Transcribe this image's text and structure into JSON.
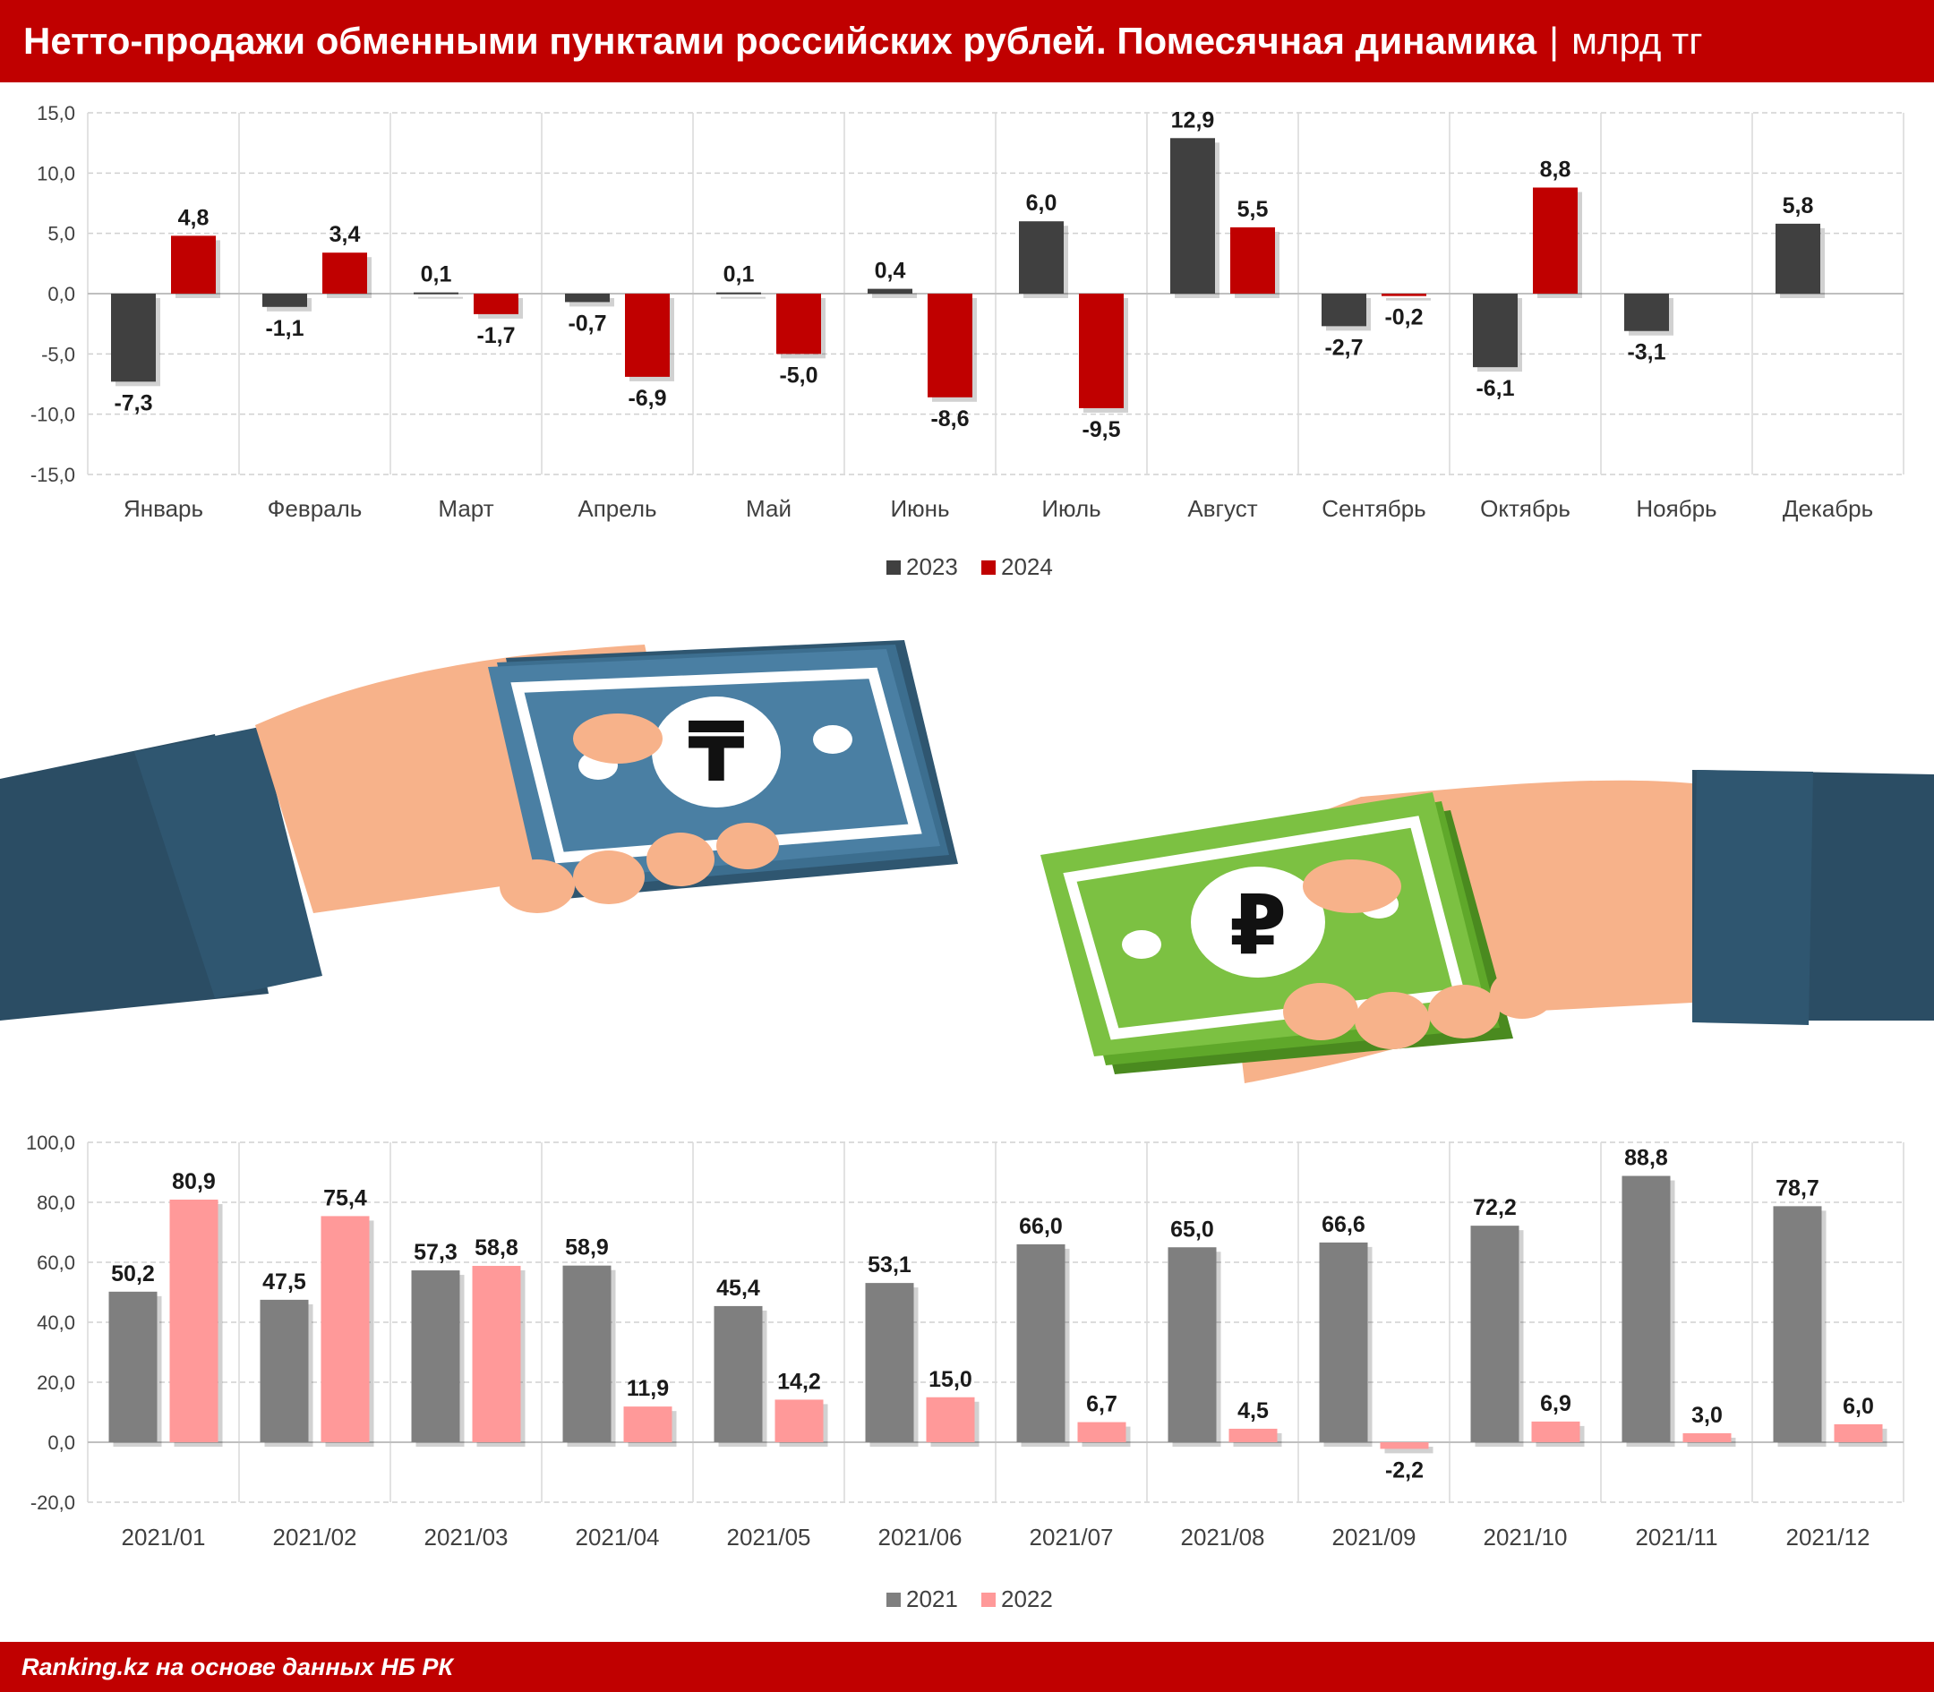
{
  "header": {
    "title": "Нетто-продажи обменными пунктами российских рублей. Помесячная динамика",
    "separator": "|",
    "unit": "млрд тг"
  },
  "footer": {
    "source": "Ranking.kz на основе данных НБ РК"
  },
  "illustration": {
    "tenge_symbol": "₸",
    "ruble_symbol": "₽"
  },
  "colors": {
    "s2023": "#404040",
    "s2024": "#c00000",
    "s2021": "#7f7f7f",
    "s2022": "#ff9999",
    "header_bg": "#c00000"
  },
  "chart_data": [
    {
      "type": "bar",
      "categories": [
        "Январь",
        "Февраль",
        "Март",
        "Апрель",
        "Май",
        "Июнь",
        "Июль",
        "Август",
        "Сентябрь",
        "Октябрь",
        "Ноябрь",
        "Декабрь"
      ],
      "series": [
        {
          "name": "2023",
          "color": "#404040",
          "values": [
            -7.3,
            -1.1,
            0.1,
            -0.7,
            0.1,
            0.4,
            6.0,
            12.9,
            -2.7,
            -6.1,
            -3.1,
            5.8
          ]
        },
        {
          "name": "2024",
          "color": "#c00000",
          "values": [
            4.8,
            3.4,
            -1.7,
            -6.9,
            -5.0,
            -8.6,
            -9.5,
            5.5,
            -0.2,
            8.8,
            null,
            null
          ]
        }
      ],
      "ylim": [
        -15,
        15
      ],
      "yticks": [
        "15,0",
        "10,0",
        "5,0",
        "0,0",
        "-5,0",
        "-10,0",
        "-15,0"
      ],
      "data_labels": [
        [
          "-7,3",
          "-1,1",
          "0,1",
          "-0,7",
          "0,1",
          "0,4",
          "6,0",
          "12,9",
          "-2,7",
          "-6,1",
          "-3,1",
          "5,8"
        ],
        [
          "4,8",
          "3,4",
          "-1,7",
          "-6,9",
          "-5,0",
          "-8,6",
          "-9,5",
          "5,5",
          "-0,2",
          "8,8",
          "",
          ""
        ]
      ],
      "legend": "bottom",
      "grid": true
    },
    {
      "type": "bar",
      "categories": [
        "2021/01",
        "2021/02",
        "2021/03",
        "2021/04",
        "2021/05",
        "2021/06",
        "2021/07",
        "2021/08",
        "2021/09",
        "2021/10",
        "2021/11",
        "2021/12"
      ],
      "series": [
        {
          "name": "2021",
          "color": "#7f7f7f",
          "values": [
            50.2,
            47.5,
            57.3,
            58.9,
            45.4,
            53.1,
            66.0,
            65.0,
            66.6,
            72.2,
            88.8,
            78.7
          ]
        },
        {
          "name": "2022",
          "color": "#ff9999",
          "values": [
            80.9,
            75.4,
            58.8,
            11.9,
            14.2,
            15.0,
            6.7,
            4.5,
            -2.2,
            6.9,
            3.0,
            6.0
          ]
        }
      ],
      "ylim": [
        -20,
        100
      ],
      "yticks": [
        "100,0",
        "80,0",
        "60,0",
        "40,0",
        "20,0",
        "0,0",
        "-20,0"
      ],
      "data_labels": [
        [
          "50,2",
          "47,5",
          "57,3",
          "58,9",
          "45,4",
          "53,1",
          "66,0",
          "65,0",
          "66,6",
          "72,2",
          "88,8",
          "78,7"
        ],
        [
          "80,9",
          "75,4",
          "58,8",
          "11,9",
          "14,2",
          "15,0",
          "6,7",
          "4,5",
          "-2,2",
          "6,9",
          "3,0",
          "6,0"
        ]
      ],
      "legend": "bottom",
      "grid": true
    }
  ]
}
